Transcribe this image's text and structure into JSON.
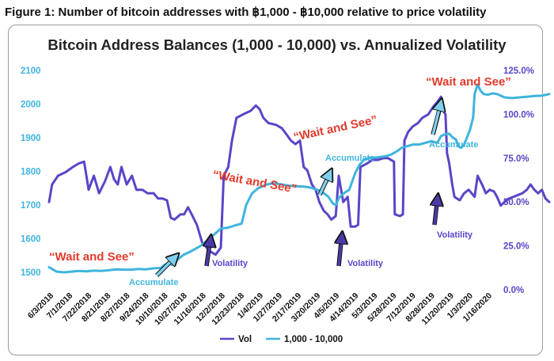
{
  "figure_title": "Figure 1: Number of bitcoin addresses with ฿1,000 - ฿10,000 relative to price volatility",
  "chart_data": {
    "type": "line",
    "title": "Bitcoin Address Balances (1,000 - 10,000) vs. Annualized Volatility",
    "colors": {
      "vol": "#5a45c8",
      "addresses": "#3fb4dd",
      "annotation_red": "#e33a2c"
    },
    "y_left": {
      "ticks": [
        "1500",
        "1600",
        "1700",
        "1800",
        "1900",
        "2000",
        "2100"
      ],
      "range": [
        1500,
        2100
      ]
    },
    "y_right": {
      "ticks": [
        "0.0%",
        "25.0%",
        "50.0%",
        "75.0%",
        "100.0%",
        "125.0%"
      ],
      "range": [
        0,
        125
      ]
    },
    "x_tick_labels": [
      "6/3/2018",
      "7/1/2018",
      "7/22/2018",
      "8/21/2018",
      "8/27/2018",
      "9/24/2018",
      "10/10/2018",
      "10/27/2018",
      "11/16/2018",
      "12/2/2018",
      "12/23/2018",
      "1/4/2019",
      "1/27/2019",
      "2/17/2019",
      "3/20/2019",
      "4/5/2019",
      "4/14/2019",
      "5/3/2019",
      "5/28/2019",
      "7/12/2019",
      "8/28/2019",
      "11/20/2019",
      "1/3/2020",
      "1/16/2020"
    ],
    "x_span_days": 600,
    "series": [
      {
        "name": "Vol",
        "axis": "right",
        "points": [
          [
            0,
            50
          ],
          [
            4,
            60
          ],
          [
            12,
            65
          ],
          [
            22,
            67
          ],
          [
            32,
            70
          ],
          [
            40,
            72
          ],
          [
            47,
            73
          ],
          [
            53,
            57
          ],
          [
            60,
            65
          ],
          [
            67,
            55
          ],
          [
            75,
            62
          ],
          [
            82,
            70
          ],
          [
            87,
            63
          ],
          [
            92,
            60
          ],
          [
            97,
            70
          ],
          [
            104,
            60
          ],
          [
            111,
            65
          ],
          [
            117,
            57
          ],
          [
            125,
            57
          ],
          [
            132,
            55
          ],
          [
            140,
            55
          ],
          [
            146,
            52
          ],
          [
            152,
            52
          ],
          [
            158,
            51
          ],
          [
            163,
            41
          ],
          [
            168,
            40
          ],
          [
            176,
            43
          ],
          [
            181,
            43
          ],
          [
            186,
            47
          ],
          [
            191,
            43
          ],
          [
            198,
            37
          ],
          [
            205,
            27
          ],
          [
            215,
            22
          ],
          [
            223,
            20
          ],
          [
            230,
            24
          ],
          [
            234,
            65
          ],
          [
            240,
            70
          ],
          [
            245,
            85
          ],
          [
            251,
            98
          ],
          [
            260,
            100
          ],
          [
            270,
            102
          ],
          [
            277,
            105
          ],
          [
            282,
            103
          ],
          [
            287,
            98
          ],
          [
            294,
            95
          ],
          [
            304,
            94
          ],
          [
            312,
            92
          ],
          [
            319,
            88
          ],
          [
            324,
            85
          ],
          [
            330,
            83
          ],
          [
            336,
            85
          ],
          [
            341,
            70
          ],
          [
            346,
            68
          ],
          [
            352,
            60
          ],
          [
            357,
            57
          ],
          [
            362,
            50
          ],
          [
            368,
            45
          ],
          [
            373,
            43
          ],
          [
            378,
            40
          ],
          [
            384,
            42
          ],
          [
            388,
            65
          ],
          [
            394,
            50
          ],
          [
            400,
            53
          ],
          [
            404,
            36
          ],
          [
            410,
            36
          ],
          [
            414,
            37
          ],
          [
            417,
            70
          ],
          [
            426,
            72
          ],
          [
            433,
            74
          ],
          [
            440,
            74
          ],
          [
            448,
            75
          ],
          [
            454,
            75
          ],
          [
            462,
            73
          ],
          [
            463,
            43
          ],
          [
            470,
            42
          ],
          [
            474,
            43
          ],
          [
            476,
            85
          ],
          [
            481,
            90
          ],
          [
            487,
            93
          ],
          [
            494,
            95
          ],
          [
            500,
            98
          ],
          [
            508,
            100
          ],
          [
            514,
            104
          ],
          [
            520,
            107
          ],
          [
            525,
            110
          ],
          [
            528,
            102
          ],
          [
            531,
            100
          ],
          [
            533,
            78
          ],
          [
            536,
            72
          ],
          [
            540,
            60
          ],
          [
            543,
            53
          ],
          [
            550,
            51
          ],
          [
            556,
            55
          ],
          [
            562,
            57
          ],
          [
            570,
            53
          ],
          [
            574,
            65
          ],
          [
            580,
            60
          ],
          [
            585,
            55
          ],
          [
            590,
            57
          ],
          [
            596,
            56
          ],
          [
            600,
            53
          ],
          [
            605,
            48
          ],
          [
            610,
            50
          ],
          [
            616,
            52
          ],
          [
            622,
            53
          ],
          [
            628,
            54
          ],
          [
            634,
            55
          ],
          [
            640,
            57
          ],
          [
            645,
            60
          ],
          [
            650,
            57
          ],
          [
            655,
            55
          ],
          [
            660,
            57
          ],
          [
            665,
            52
          ],
          [
            670,
            50
          ]
        ]
      },
      {
        "name": "1,000 - 10,000",
        "axis": "left",
        "points": [
          [
            0,
            1515
          ],
          [
            10,
            1502
          ],
          [
            20,
            1500
          ],
          [
            30,
            1502
          ],
          [
            40,
            1504
          ],
          [
            50,
            1503
          ],
          [
            60,
            1505
          ],
          [
            70,
            1504
          ],
          [
            80,
            1506
          ],
          [
            90,
            1509
          ],
          [
            100,
            1508
          ],
          [
            110,
            1508
          ],
          [
            120,
            1510
          ],
          [
            130,
            1509
          ],
          [
            140,
            1512
          ],
          [
            150,
            1513
          ],
          [
            155,
            1523
          ],
          [
            160,
            1525
          ],
          [
            166,
            1522
          ],
          [
            172,
            1538
          ],
          [
            180,
            1552
          ],
          [
            188,
            1560
          ],
          [
            196,
            1570
          ],
          [
            204,
            1580
          ],
          [
            212,
            1595
          ],
          [
            220,
            1610
          ],
          [
            230,
            1630
          ],
          [
            240,
            1633
          ],
          [
            250,
            1640
          ],
          [
            258,
            1645
          ],
          [
            264,
            1700
          ],
          [
            272,
            1735
          ],
          [
            280,
            1750
          ],
          [
            290,
            1760
          ],
          [
            300,
            1765
          ],
          [
            310,
            1762
          ],
          [
            320,
            1758
          ],
          [
            330,
            1756
          ],
          [
            340,
            1755
          ],
          [
            350,
            1752
          ],
          [
            360,
            1745
          ],
          [
            368,
            1735
          ],
          [
            374,
            1725
          ],
          [
            380,
            1705
          ],
          [
            384,
            1700
          ],
          [
            388,
            1720
          ],
          [
            392,
            1730
          ],
          [
            398,
            1740
          ],
          [
            402,
            1745
          ],
          [
            406,
            1770
          ],
          [
            410,
            1795
          ],
          [
            416,
            1820
          ],
          [
            422,
            1835
          ],
          [
            430,
            1840
          ],
          [
            440,
            1842
          ],
          [
            450,
            1845
          ],
          [
            458,
            1850
          ],
          [
            466,
            1860
          ],
          [
            472,
            1870
          ],
          [
            480,
            1875
          ],
          [
            488,
            1880
          ],
          [
            496,
            1880
          ],
          [
            504,
            1885
          ],
          [
            512,
            1890
          ],
          [
            520,
            1885
          ],
          [
            525,
            1905
          ],
          [
            530,
            1910
          ],
          [
            536,
            1912
          ],
          [
            541,
            1900
          ],
          [
            545,
            1895
          ],
          [
            548,
            1875
          ],
          [
            552,
            1870
          ],
          [
            556,
            1880
          ],
          [
            560,
            1902
          ],
          [
            564,
            1925
          ],
          [
            568,
            1960
          ],
          [
            570,
            2030
          ],
          [
            574,
            2058
          ],
          [
            578,
            2040
          ],
          [
            582,
            2030
          ],
          [
            588,
            2028
          ],
          [
            594,
            2032
          ],
          [
            600,
            2030
          ],
          [
            610,
            2020
          ],
          [
            620,
            2018
          ],
          [
            630,
            2020
          ],
          [
            640,
            2022
          ],
          [
            650,
            2024
          ],
          [
            660,
            2025
          ],
          [
            670,
            2030
          ]
        ]
      }
    ],
    "annotations": {
      "wait1": "“Wait and See”",
      "wait2": "“Wait and See”",
      "wait3": "“Wait and See”",
      "wait4": "“Wait and See”",
      "acc1": "Accumulate",
      "acc2": "Accumulate",
      "acc3": "Accumulate",
      "vol1": "Volatility",
      "vol2": "Volatility",
      "vol3": "Volatility"
    },
    "legend": [
      {
        "label": "Vol"
      },
      {
        "label": "1,000 - 10,000"
      }
    ]
  }
}
